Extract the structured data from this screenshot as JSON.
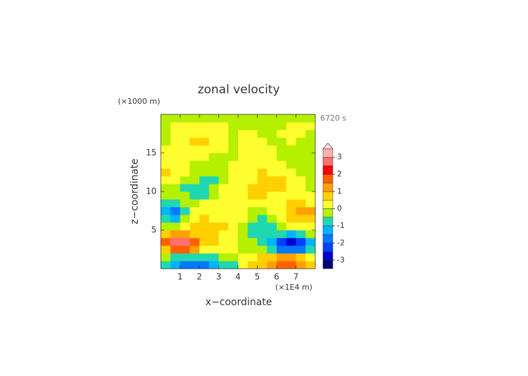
{
  "chart_data": {
    "type": "contour",
    "title": "zonal velocity",
    "y_unit_label": "(×1000 m)",
    "x_unit_label": "(×1E4 m)",
    "time_label": "6720 s",
    "xlabel": "x−coordinate",
    "ylabel": "z−coordinate",
    "xlim": [
      0,
      8
    ],
    "ylim": [
      0,
      20
    ],
    "xticks": [
      1,
      2,
      3,
      4,
      5,
      6,
      7
    ],
    "yticks": [
      5,
      10,
      15
    ],
    "x": [
      0.25,
      0.75,
      1.25,
      1.75,
      2.25,
      2.75,
      3.25,
      3.75,
      4.25,
      4.75,
      5.25,
      5.75,
      6.25,
      6.75,
      7.25,
      7.75
    ],
    "y": [
      0.5,
      1.5,
      2.5,
      3.5,
      4.5,
      5.5,
      6.5,
      7.5,
      8.5,
      9.5,
      10.5,
      11.5,
      12.5,
      13.5,
      14.5,
      15.5,
      16.5,
      17.5,
      18.5,
      19.5
    ],
    "z": [
      [
        -0.8,
        -1.5,
        -1.8,
        -1.8,
        -1.6,
        -1.4,
        -1.0,
        -0.6,
        0.4,
        0.6,
        0.9,
        1.2,
        1.5,
        1.6,
        1.4,
        0.8
      ],
      [
        -0.3,
        -0.8,
        -1.0,
        -1.0,
        -0.8,
        -0.6,
        -0.4,
        -0.2,
        0.2,
        0.3,
        0.5,
        0.8,
        1.0,
        1.0,
        0.8,
        0.4
      ],
      [
        0.8,
        1.5,
        1.6,
        1.0,
        0.4,
        0.2,
        0.1,
        0.1,
        -0.1,
        -0.2,
        -0.4,
        -1.0,
        -1.6,
        -1.8,
        -1.6,
        -0.9
      ],
      [
        1.5,
        2.6,
        2.8,
        1.6,
        0.6,
        0.5,
        0.3,
        0.1,
        -0.1,
        -0.3,
        -0.6,
        -1.4,
        -2.4,
        -2.8,
        -2.4,
        -1.3
      ],
      [
        0.6,
        1.2,
        1.0,
        0.6,
        0.6,
        0.7,
        0.4,
        0.2,
        -0.2,
        -0.6,
        -0.8,
        -0.6,
        -1.0,
        -1.2,
        -1.0,
        -0.5
      ],
      [
        -0.3,
        -0.3,
        0.1,
        0.5,
        0.7,
        0.7,
        0.5,
        0.2,
        -0.1,
        -0.6,
        -0.7,
        -0.6,
        -0.3,
        0.0,
        0.1,
        0.1
      ],
      [
        -1.0,
        -1.2,
        -0.4,
        0.2,
        0.5,
        0.4,
        0.3,
        0.2,
        0.1,
        -0.4,
        -0.6,
        -0.3,
        0.2,
        0.5,
        0.9,
        0.8
      ],
      [
        -1.3,
        -1.6,
        -0.8,
        0.0,
        0.2,
        0.3,
        0.3,
        0.2,
        0.1,
        -0.2,
        -0.3,
        0.0,
        0.4,
        0.8,
        1.3,
        1.0
      ],
      [
        -0.7,
        -0.8,
        -0.5,
        -0.2,
        0.1,
        0.2,
        0.3,
        0.2,
        0.2,
        0.2,
        0.1,
        0.1,
        0.3,
        0.5,
        0.6,
        0.4
      ],
      [
        -0.2,
        -0.3,
        -0.4,
        -0.6,
        -0.6,
        -0.3,
        0.1,
        0.2,
        0.3,
        0.6,
        0.6,
        0.4,
        0.2,
        0.2,
        0.2,
        0.1
      ],
      [
        -0.1,
        -0.2,
        -0.6,
        -0.8,
        -0.7,
        -0.5,
        0.0,
        0.2,
        0.4,
        0.7,
        0.6,
        0.8,
        0.6,
        0.2,
        0.1,
        -0.1
      ],
      [
        0.1,
        0.1,
        -0.2,
        -0.5,
        -0.6,
        -0.6,
        -0.2,
        0.1,
        0.2,
        0.4,
        0.5,
        0.8,
        0.7,
        0.2,
        0.0,
        -0.2
      ],
      [
        0.6,
        0.4,
        0.0,
        -0.2,
        -0.4,
        -0.4,
        -0.3,
        0.0,
        0.1,
        0.3,
        0.6,
        0.4,
        0.2,
        0.1,
        -0.1,
        -0.2
      ],
      [
        0.3,
        0.2,
        0.0,
        -0.1,
        -0.2,
        -0.2,
        -0.2,
        0.0,
        0.2,
        0.2,
        0.2,
        0.1,
        0.0,
        -0.1,
        -0.2,
        -0.2
      ],
      [
        0.1,
        0.2,
        0.2,
        0.1,
        0.0,
        -0.1,
        -0.1,
        -0.1,
        0.2,
        0.1,
        0.1,
        0.0,
        -0.2,
        -0.2,
        -0.1,
        -0.1
      ],
      [
        0.2,
        0.3,
        0.3,
        0.2,
        0.1,
        0.2,
        0.1,
        -0.1,
        0.3,
        0.2,
        0.1,
        0.1,
        -0.1,
        -0.2,
        -0.2,
        -0.1
      ],
      [
        -0.2,
        0.2,
        0.3,
        0.5,
        0.6,
        0.3,
        0.1,
        -0.2,
        0.2,
        0.2,
        0.1,
        -0.3,
        -0.1,
        0.1,
        -0.1,
        -0.2
      ],
      [
        -0.2,
        0.1,
        0.2,
        0.3,
        0.3,
        0.2,
        0.1,
        -0.2,
        0.2,
        0.2,
        -0.1,
        -0.2,
        0.1,
        0.3,
        0.2,
        -0.1
      ],
      [
        -0.2,
        0.2,
        0.3,
        0.2,
        0.1,
        0.2,
        0.2,
        -0.1,
        -0.2,
        -0.2,
        -0.2,
        -0.2,
        -0.1,
        0.3,
        0.4,
        0.1
      ],
      [
        -0.2,
        -0.2,
        -0.3,
        -0.3,
        -0.2,
        -0.1,
        -0.2,
        -0.2,
        -0.3,
        -0.3,
        -0.2,
        -0.2,
        -0.3,
        -0.2,
        -0.1,
        -0.2
      ]
    ],
    "levels": [
      -3.5,
      -3,
      -2.5,
      -2,
      -1.5,
      -1,
      -0.5,
      0,
      0.5,
      1,
      1.5,
      2,
      2.5,
      3,
      3.5
    ],
    "colors": [
      "#00007a",
      "#0000d0",
      "#0040ff",
      "#0078ff",
      "#00b4ff",
      "#20d8b0",
      "#b4f000",
      "#ffff30",
      "#ffd000",
      "#ffa000",
      "#ff6000",
      "#ff0000",
      "#ff7070",
      "#ffb0b0"
    ],
    "over_color": "#ffe0e0",
    "colorbar_ticks": [
      -3,
      -2,
      -1,
      0,
      1,
      2,
      3
    ]
  }
}
